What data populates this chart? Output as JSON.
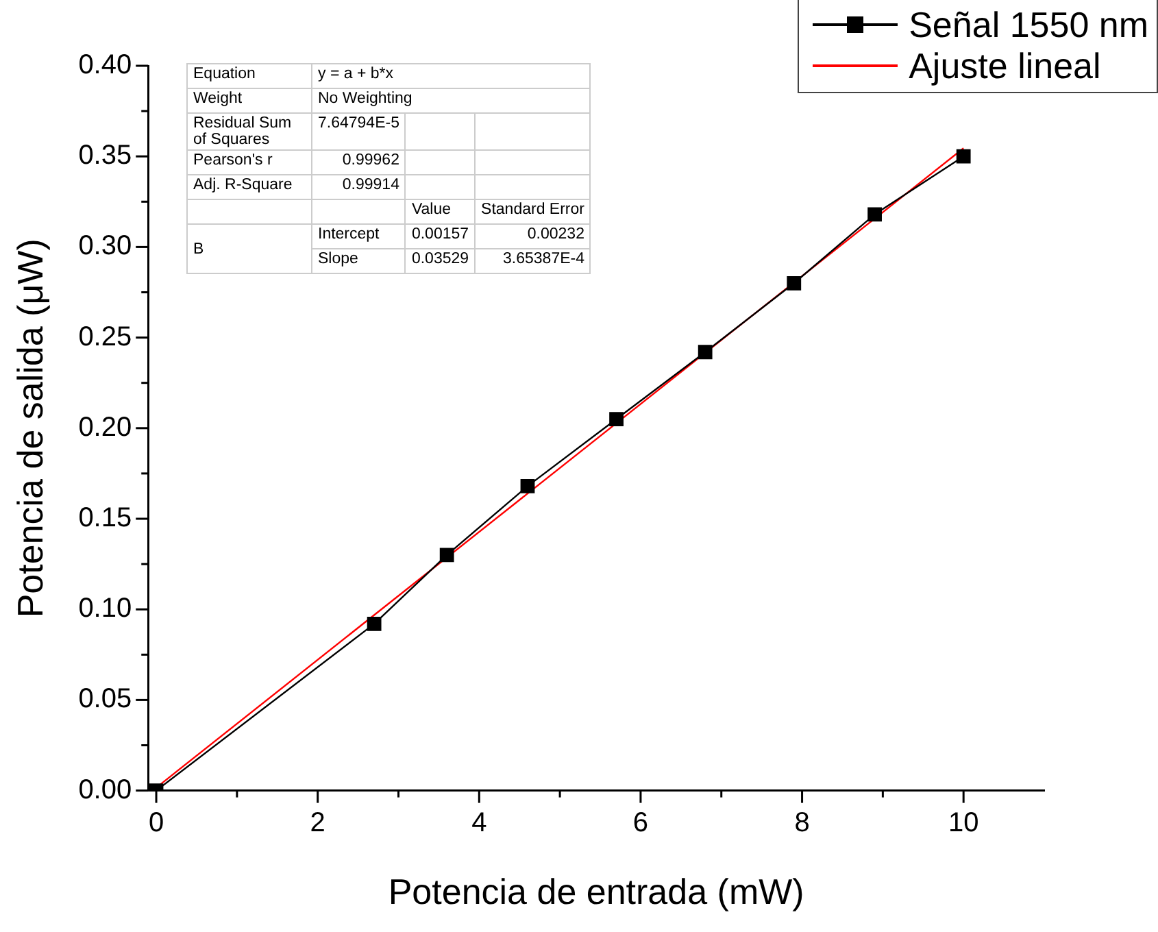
{
  "chart_data": {
    "type": "line",
    "xlabel": "Potencia de entrada (mW)",
    "ylabel": "Potencia de salida (μW)",
    "xlim": [
      -0.1,
      11
    ],
    "xticks": [
      0,
      {
        "value": 1,
        "label": null
      },
      2,
      {
        "value": 3,
        "label": null
      },
      4,
      {
        "value": 5,
        "label": null
      },
      6,
      {
        "value": 7,
        "label": null
      },
      8,
      {
        "value": 9,
        "label": null
      },
      10
    ],
    "ylim": [
      0,
      0.4
    ],
    "yticks": [
      {
        "value": 0,
        "label": "0.00"
      },
      {
        "value": 0.025,
        "label": null
      },
      {
        "value": 0.05,
        "label": "0.05"
      },
      {
        "value": 0.075,
        "label": null
      },
      {
        "value": 0.1,
        "label": "0.10"
      },
      {
        "value": 0.125,
        "label": null
      },
      {
        "value": 0.15,
        "label": "0.15"
      },
      {
        "value": 0.175,
        "label": null
      },
      {
        "value": 0.2,
        "label": "0.20"
      },
      {
        "value": 0.225,
        "label": null
      },
      {
        "value": 0.25,
        "label": "0.25"
      },
      {
        "value": 0.275,
        "label": null
      },
      {
        "value": 0.3,
        "label": "0.30"
      },
      {
        "value": 0.325,
        "label": null
      },
      {
        "value": 0.35,
        "label": "0.35"
      },
      {
        "value": 0.375,
        "label": null
      },
      {
        "value": 0.4,
        "label": "0.40"
      }
    ],
    "x": [
      0,
      2.7,
      3.6,
      4.6,
      5.7,
      6.8,
      7.9,
      8.9,
      10
    ],
    "series": [
      {
        "name": "Señal 1550 nm",
        "color": "#000000",
        "marker": "square",
        "values": [
          0,
          0.092,
          0.13,
          0.168,
          0.205,
          0.242,
          0.28,
          0.318,
          0.35
        ]
      },
      {
        "name": "Ajuste lineal",
        "color": "#ff0000",
        "marker": "none",
        "x": [
          0,
          10
        ],
        "values": [
          0.0016,
          0.3545
        ]
      }
    ],
    "legend": "top right",
    "annotations": [
      "Equation",
      "y = a + b*x",
      "Weight",
      "No Weighting",
      "Residual Sum of Squares",
      "7.64794E-5",
      "Pearson's r",
      "0.99962",
      "Adj. R-Square",
      "0.99914",
      "Value",
      "Standard Error",
      "B",
      "Intercept",
      "0.00157",
      "0.00232",
      "Slope",
      "0.03529",
      "3.65387E-4"
    ]
  }
}
